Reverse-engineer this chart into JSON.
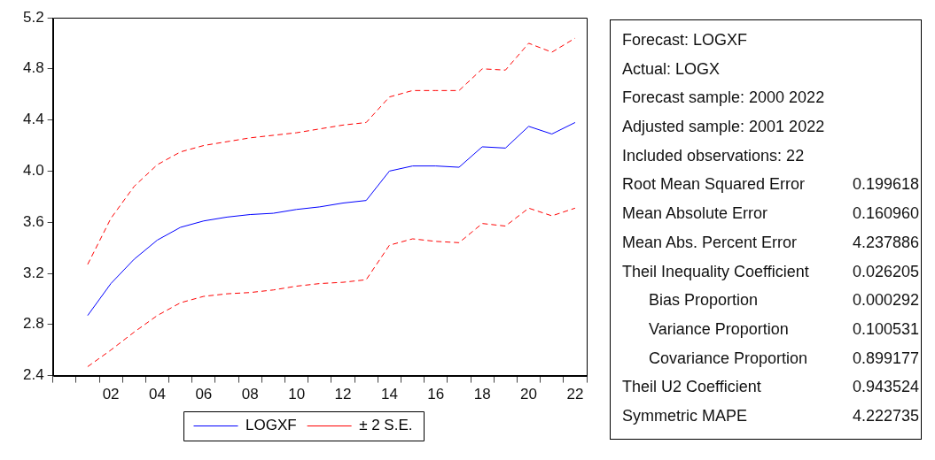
{
  "chart_data": [
    {
      "type": "line",
      "categories": [
        null,
        null,
        "02",
        null,
        "04",
        null,
        "06",
        null,
        "08",
        null,
        "10",
        null,
        "12",
        null,
        "14",
        null,
        "16",
        null,
        "18",
        null,
        "20",
        null,
        "22"
      ],
      "series": [
        {
          "name": "LOGXF",
          "color": "#0000ff",
          "line_style": "solid",
          "values": [
            null,
            2.87,
            3.12,
            3.31,
            3.46,
            3.56,
            3.61,
            3.64,
            3.66,
            3.67,
            3.7,
            3.72,
            3.75,
            3.77,
            4.0,
            4.04,
            4.04,
            4.03,
            4.19,
            4.18,
            4.35,
            4.29,
            4.38
          ]
        },
        {
          "name": "± 2 S.E.",
          "color": "#ff0000",
          "line_style": "dashed",
          "values": [
            null,
            3.27,
            3.63,
            3.88,
            4.05,
            4.15,
            4.2,
            4.23,
            4.26,
            4.28,
            4.3,
            4.33,
            4.36,
            4.38,
            4.58,
            4.63,
            4.63,
            4.63,
            4.8,
            4.79,
            5.0,
            4.93,
            5.04
          ]
        },
        {
          "color": "#ff0000",
          "line_style": "dashed",
          "values": [
            null,
            2.47,
            2.6,
            2.74,
            2.87,
            2.97,
            3.02,
            3.04,
            3.05,
            3.07,
            3.1,
            3.12,
            3.13,
            3.15,
            3.42,
            3.47,
            3.45,
            3.44,
            3.59,
            3.57,
            3.71,
            3.65,
            3.71
          ]
        }
      ],
      "ylim": [
        2.4,
        5.2
      ],
      "yticks": [
        2.4,
        2.8,
        3.2,
        3.6,
        {
          "value": 4.0,
          "label": "4.0"
        },
        4.4,
        4.8,
        5.2
      ],
      "grid": false,
      "legend": "bottom",
      "marker": "none"
    },
    {
      "type": "other",
      "annotations": [
        "Forecast: LOGXF",
        "Actual: LOGX",
        "Forecast sample: 2000 2022",
        "Adjusted sample: 2001 2022",
        "Included observations: 22"
      ],
      "categories": [
        "Root Mean Squared Error",
        "Mean Absolute Error",
        "Mean Abs. Percent Error",
        "Theil Inequality Coefficient",
        "Bias Proportion",
        "Variance Proportion",
        "Covariance Proportion",
        "Theil U2 Coefficient",
        "Symmetric MAPE"
      ],
      "value_labels": [
        "0.199618",
        "0.160960",
        "4.237886",
        "0.026205",
        "0.000292",
        "0.100531",
        "0.899177",
        "0.943524",
        "4.222735"
      ]
    }
  ]
}
